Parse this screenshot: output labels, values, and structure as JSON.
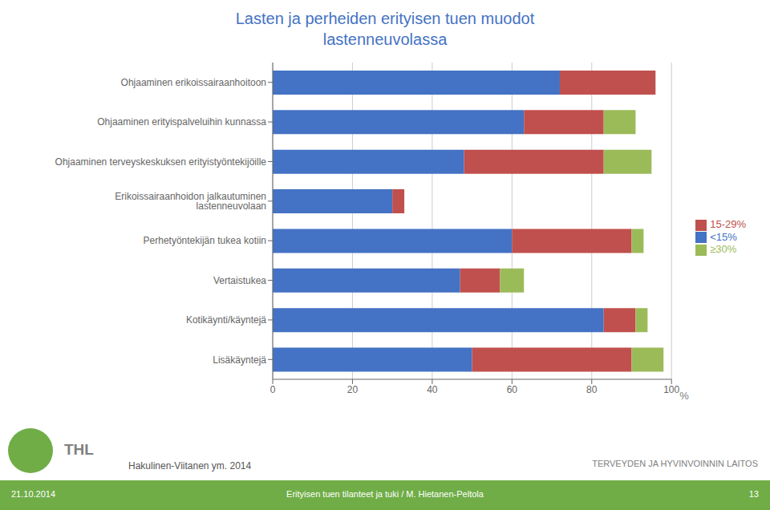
{
  "chart_data": {
    "type": "bar",
    "orientation": "horizontal",
    "stacked": true,
    "title": "Lasten ja perheiden erityisen tuen muodot",
    "subtitle": "lastenneuvolassa",
    "categories": [
      "Ohjaaminen erikoissairaanhoitoon",
      "Ohjaaminen erityispalveluihin kunnassa",
      "Ohjaaminen terveyskeskuksen erityistyöntekijöille",
      "Erikoissairaanhoidon jalkautuminen lastenneuvolaan",
      "Perhetyöntekijän tukea kotiin",
      "Vertaistukea",
      "Kotikäynti/käyntejä",
      "Lisäkäyntejä"
    ],
    "series": [
      {
        "name": "<15%",
        "color": "#4472C4",
        "values": [
          72,
          63,
          48,
          30,
          60,
          47,
          83,
          50
        ]
      },
      {
        "name": "15-29%",
        "color": "#C0504D",
        "values": [
          24,
          20,
          35,
          3,
          30,
          10,
          8,
          40
        ]
      },
      {
        "name": "≥30%",
        "color": "#9BBB59",
        "values": [
          0,
          8,
          12,
          0,
          3,
          6,
          3,
          8
        ]
      }
    ],
    "xlabel": "%",
    "xlim": [
      0,
      100
    ],
    "xticks": [
      0,
      20,
      40,
      60,
      80,
      100
    ],
    "grid": true,
    "legend": "right",
    "annotations": [
      "21.10.2014",
      "Erityisen tuen tilanteet ja tuki / M. Hietanen-Peltola",
      "13",
      "THL",
      "Hakulinen-Viitanen ym. 2014",
      "TERVEYDEN JA HYVINVOINNIN LAITOS"
    ]
  }
}
